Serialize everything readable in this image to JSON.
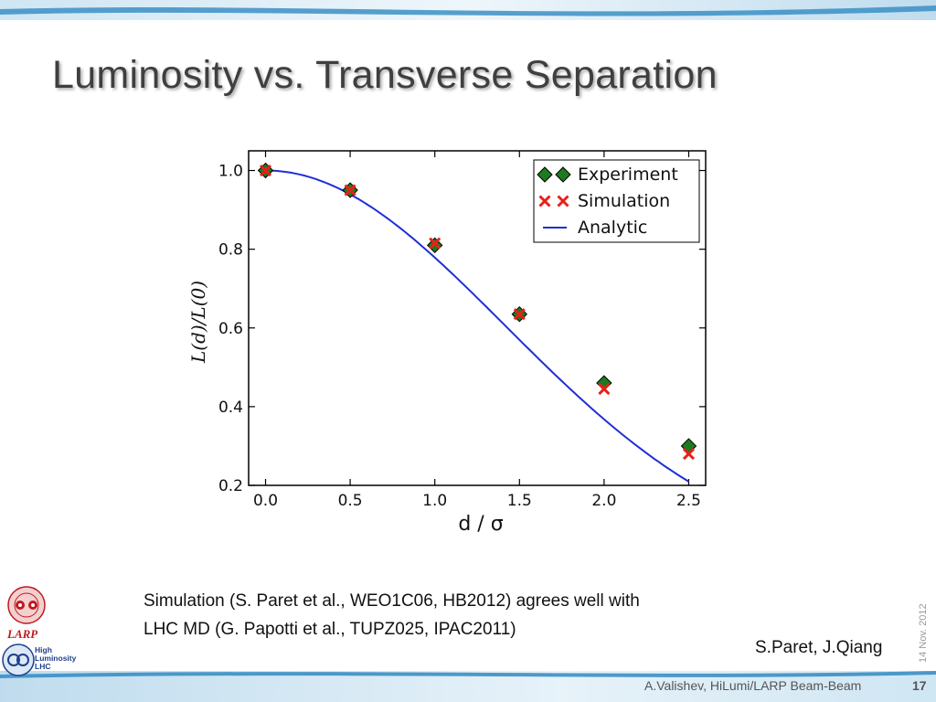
{
  "slide": {
    "title": "Luminosity vs. Transverse Separation",
    "caption_line1": "Simulation (S. Paret et al., WEO1C06, HB2012) agrees well with",
    "caption_line2": "LHC MD (G. Papotti et al., TUPZ025, IPAC2011)",
    "authors": "S.Paret, J.Qiang",
    "date": "14 Nov. 2012",
    "footer": "A.Valishev, HiLumi/LARP Beam-Beam",
    "page_number": "17",
    "logos": {
      "larp_label": "LARP",
      "hilumi_line1": "High",
      "hilumi_line2": "Luminosity",
      "hilumi_line3": "LHC"
    }
  },
  "colors": {
    "experiment": "#1e7a1e",
    "simulation": "#e8201a",
    "analytic": "#1f2fd6",
    "title": "#3f3f3f",
    "band_blue": "#3b8fc4"
  },
  "chart_data": {
    "type": "scatter",
    "xlabel": "d / σ",
    "ylabel": "L(d)/L(0)",
    "xlim": [
      -0.1,
      2.6
    ],
    "ylim": [
      0.2,
      1.05
    ],
    "x_ticks": [
      "0.0",
      "0.5",
      "1.0",
      "1.5",
      "2.0",
      "2.5"
    ],
    "y_ticks": [
      "0.2",
      "0.4",
      "0.6",
      "0.8",
      "1.0"
    ],
    "legend_position": "top-right",
    "series": [
      {
        "name": "Experiment",
        "marker": "diamond",
        "x": [
          0.0,
          0.5,
          1.0,
          1.5,
          2.0,
          2.5
        ],
        "y": [
          1.0,
          0.95,
          0.81,
          0.635,
          0.46,
          0.3
        ]
      },
      {
        "name": "Simulation",
        "marker": "x",
        "x": [
          0.0,
          0.5,
          1.0,
          1.5,
          2.0,
          2.5
        ],
        "y": [
          1.0,
          0.95,
          0.815,
          0.635,
          0.445,
          0.28
        ]
      },
      {
        "name": "Analytic",
        "marker": "line",
        "formula": "exp(-d^2/4)",
        "x_range": [
          0.0,
          2.5
        ]
      }
    ]
  }
}
